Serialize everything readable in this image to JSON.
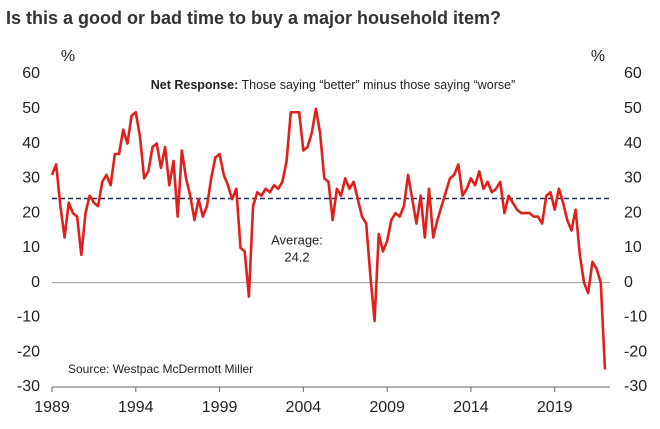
{
  "chart_data": {
    "type": "line",
    "title": "Is this a good or bad time to buy a major household item?",
    "subtitle_bold": "Net Response:",
    "subtitle": "Those saying “better” minus those saying “worse”",
    "y_unit": "%",
    "y2_unit": "%",
    "source": "Source: Westpac McDermott Miller",
    "average": {
      "label": "Average:",
      "value": 24.2,
      "color": "#1f2a5a"
    },
    "color": "#e0201b",
    "x": [
      1989,
      1989.25,
      1989.5,
      1989.75,
      1990,
      1990.25,
      1990.5,
      1990.75,
      1991,
      1991.25,
      1991.5,
      1991.75,
      1992,
      1992.25,
      1992.5,
      1992.75,
      1993,
      1993.25,
      1993.5,
      1993.75,
      1994,
      1994.25,
      1994.5,
      1994.75,
      1995,
      1995.25,
      1995.5,
      1995.75,
      1996,
      1996.25,
      1996.5,
      1996.75,
      1997,
      1997.25,
      1997.5,
      1997.75,
      1998,
      1998.25,
      1998.5,
      1998.75,
      1999,
      1999.25,
      1999.5,
      1999.75,
      2000,
      2000.25,
      2000.5,
      2000.75,
      2001,
      2001.25,
      2001.5,
      2001.75,
      2002,
      2002.25,
      2002.5,
      2002.75,
      2003,
      2003.25,
      2003.5,
      2003.75,
      2004,
      2004.25,
      2004.5,
      2004.75,
      2005,
      2005.25,
      2005.5,
      2005.75,
      2006,
      2006.25,
      2006.5,
      2006.75,
      2007,
      2007.25,
      2007.5,
      2007.75,
      2008,
      2008.25,
      2008.5,
      2008.75,
      2009,
      2009.25,
      2009.5,
      2009.75,
      2010,
      2010.25,
      2010.5,
      2010.75,
      2011,
      2011.25,
      2011.5,
      2011.75,
      2012,
      2012.25,
      2012.5,
      2012.75,
      2013,
      2013.25,
      2013.5,
      2013.75,
      2014,
      2014.25,
      2014.5,
      2014.75,
      2015,
      2015.25,
      2015.5,
      2015.75,
      2016,
      2016.25,
      2016.5,
      2016.75,
      2017,
      2017.25,
      2017.5,
      2017.75,
      2018,
      2018.25,
      2018.5,
      2018.75,
      2019,
      2019.25,
      2019.5,
      2019.75,
      2020,
      2020.25,
      2020.5,
      2020.75,
      2021,
      2021.25,
      2021.5,
      2021.75,
      2022
    ],
    "values": [
      31,
      34,
      22,
      13,
      23,
      20,
      19,
      8,
      20,
      25,
      23,
      22,
      29,
      31,
      28,
      37,
      37,
      44,
      40,
      48,
      49,
      42,
      30,
      32,
      39,
      40,
      33,
      39,
      28,
      35,
      19,
      38,
      30,
      25,
      18,
      24,
      19,
      22,
      30,
      36,
      37,
      31,
      28,
      24,
      27,
      10,
      9,
      -4,
      22,
      26,
      25,
      27,
      26,
      28,
      27,
      29,
      35,
      49,
      49,
      49,
      38,
      39,
      43,
      50,
      43,
      30,
      29,
      18,
      27,
      25,
      30,
      27,
      29,
      24,
      19,
      17,
      2,
      -11,
      14,
      9,
      12,
      18,
      20,
      19,
      22,
      31,
      24,
      17,
      25,
      13,
      27,
      13,
      18,
      22,
      26,
      30,
      31,
      34,
      25,
      27,
      30,
      28,
      32,
      27,
      29,
      26,
      27,
      29,
      20,
      25,
      23,
      21,
      20,
      20,
      20,
      19,
      19,
      17,
      25,
      26,
      21,
      27,
      23,
      18,
      15,
      21,
      8,
      0,
      -3,
      6,
      4,
      0,
      -25
    ],
    "xlim": [
      1989,
      2022.3
    ],
    "xticks": [
      1989,
      1994,
      1999,
      2004,
      2009,
      2014,
      2019
    ],
    "ylim": [
      -30,
      60
    ],
    "yticks": [
      -30,
      -20,
      -10,
      0,
      10,
      20,
      30,
      40,
      50,
      60
    ],
    "y2lim": [
      -30,
      60
    ],
    "y2ticks": [
      -30,
      -20,
      -10,
      0,
      10,
      20,
      30,
      40,
      50,
      60
    ]
  }
}
